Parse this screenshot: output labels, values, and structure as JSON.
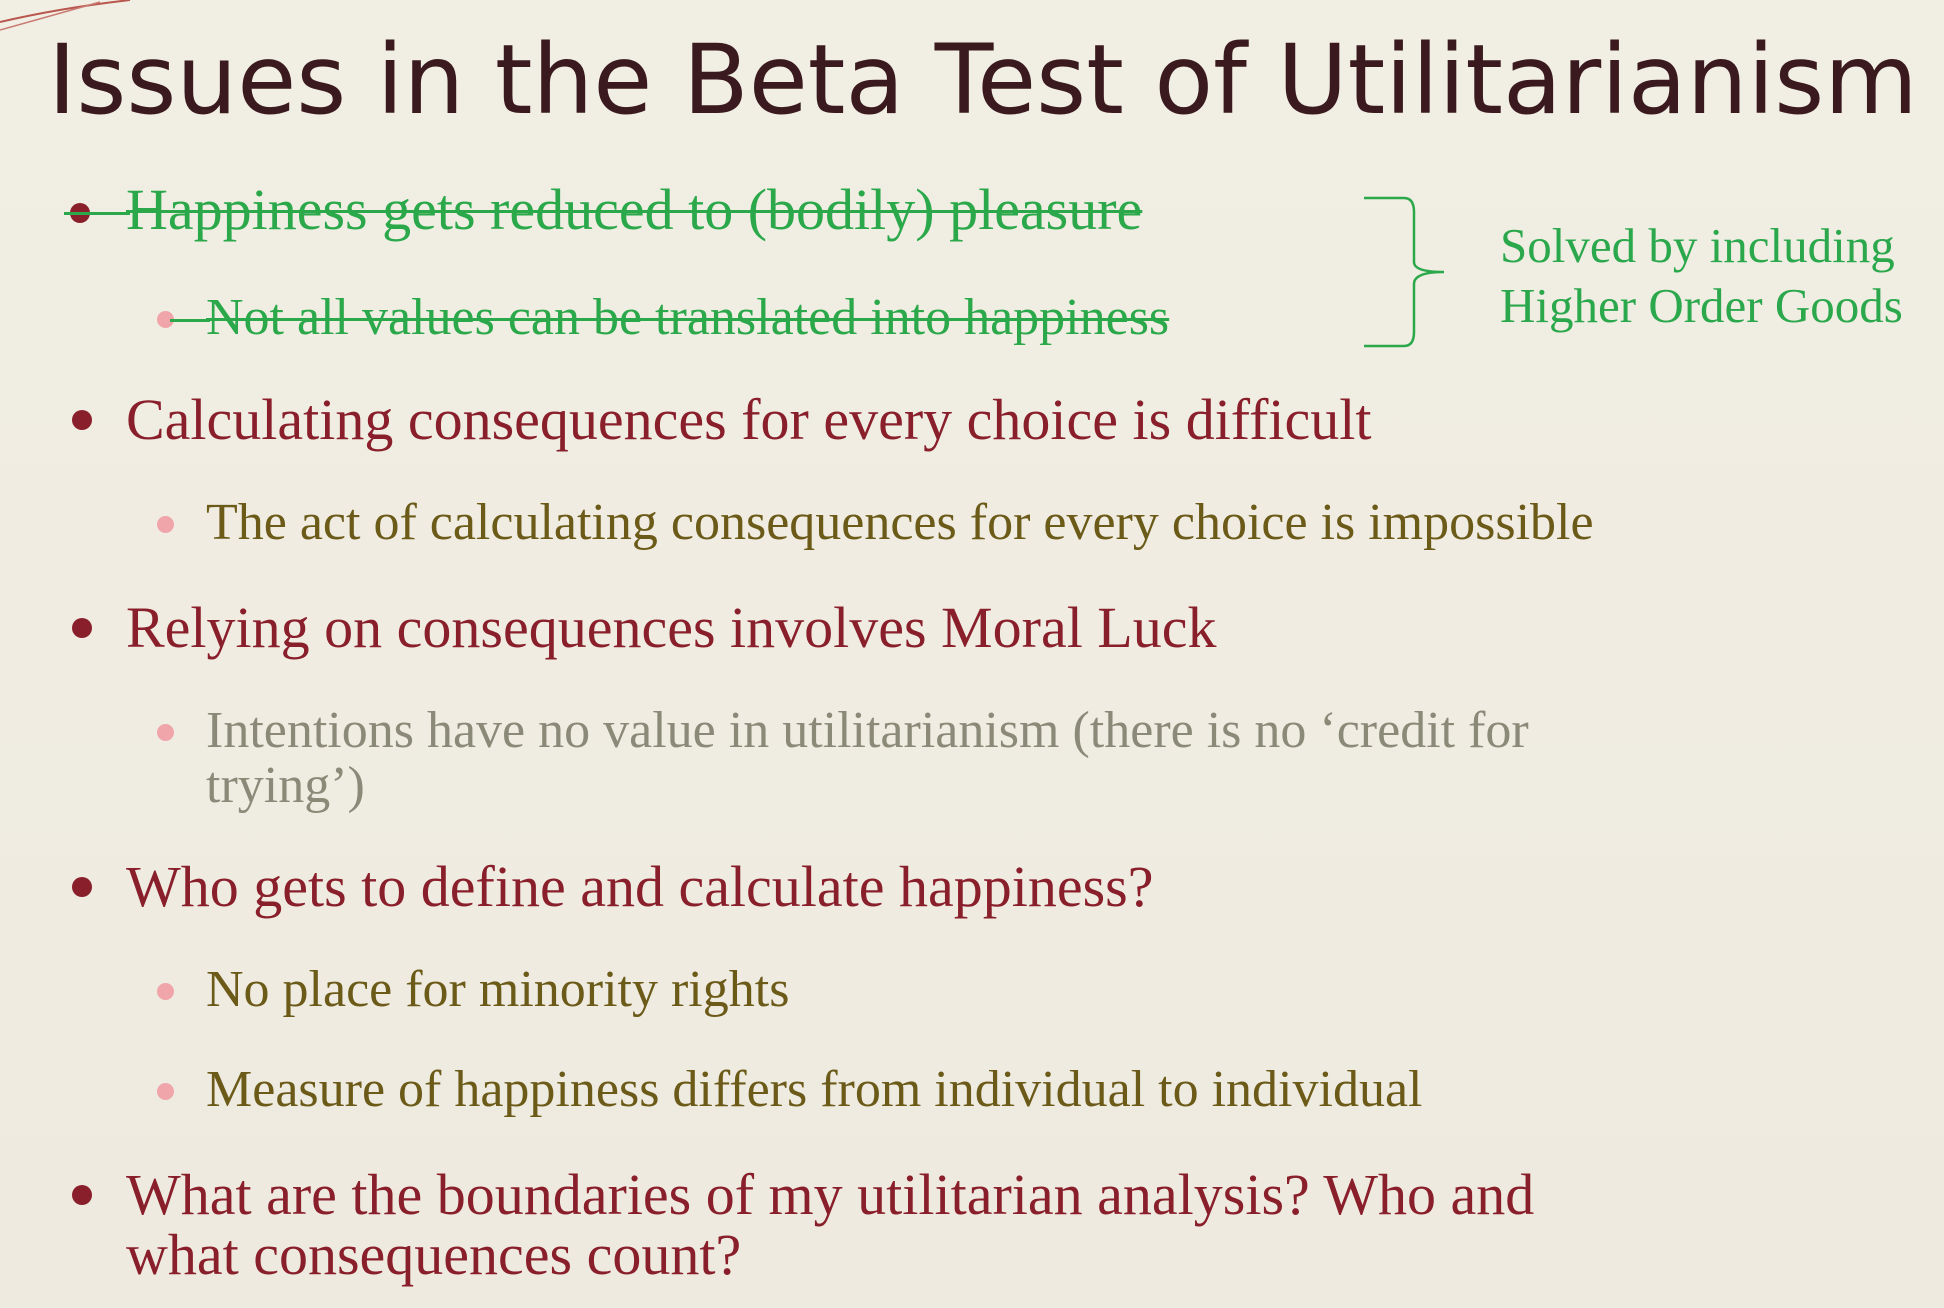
{
  "title": "Issues in the Beta Test of Utilitarianism",
  "colors": {
    "background": "#efebe0",
    "title": "#3a1a1e",
    "level1_text": "#8a1f2c",
    "level2_text": "#6b5a18",
    "struck_annotation": "#2aa84a",
    "level2_bullet": "#f0a5aa",
    "greyed_text": "#8b8a79"
  },
  "bullets": [
    {
      "text": "Happiness gets reduced to (bodily) pleasure",
      "struck": true,
      "sub": [
        {
          "text": "Not all values can be translated into happiness",
          "struck": true
        }
      ]
    },
    {
      "text": "Calculating consequences for every choice is difficult",
      "sub": [
        {
          "text": "The act of calculating consequences for every choice is impossible"
        }
      ]
    },
    {
      "text": "Relying on consequences involves Moral Luck",
      "sub": [
        {
          "line1": "Intentions have no value in utilitarianism (there is no ‘credit for",
          "line2": "trying’)"
        }
      ]
    },
    {
      "text": "Who gets to define and calculate happiness?",
      "sub": [
        {
          "text": "No place for minority rights"
        },
        {
          "text": "Measure of happiness differs from individual to individual"
        }
      ]
    },
    {
      "line1": "What are the boundaries of my utilitarian analysis? Who and",
      "line2": "what consequences count?"
    }
  ],
  "annotation": {
    "line1": "Solved by including",
    "line2": "Higher Order Goods"
  }
}
